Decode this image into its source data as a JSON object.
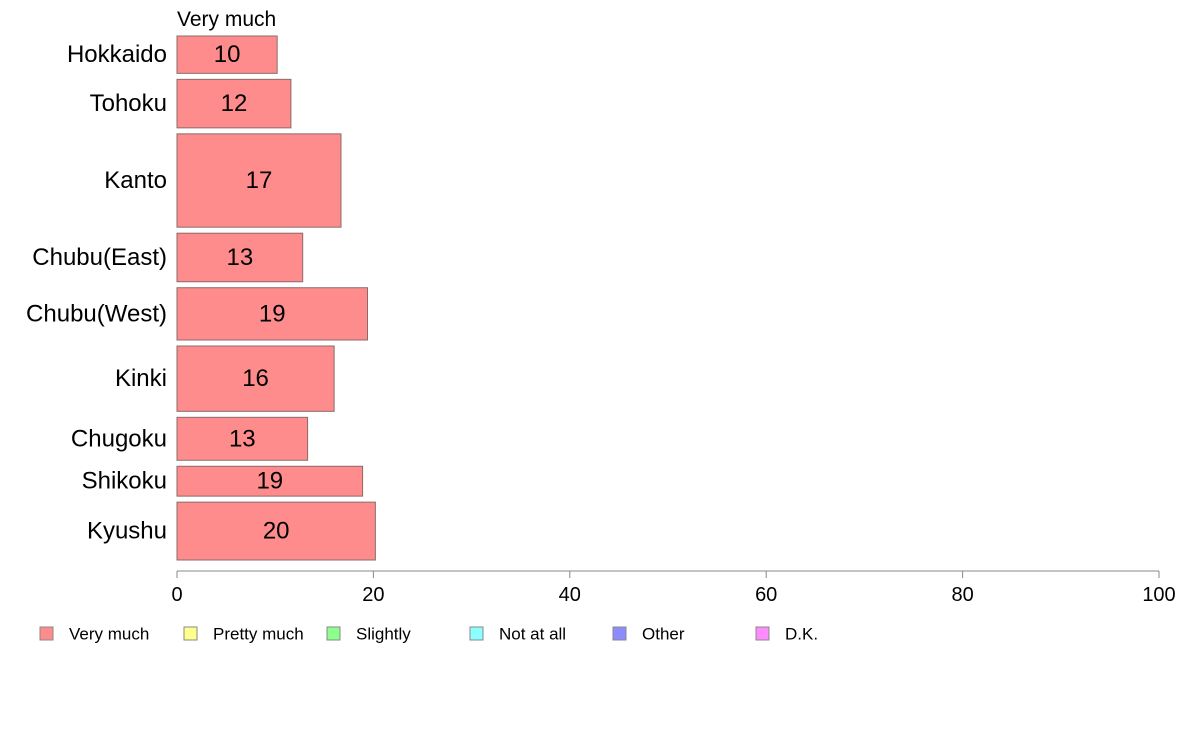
{
  "chart_data": {
    "type": "bar",
    "orientation": "horizontal",
    "stacked": true,
    "variable_width": true,
    "series_heading": "Very much",
    "categories": [
      "Hokkaido",
      "Tohoku",
      "Kanto",
      "Chubu(East)",
      "Chubu(West)",
      "Kinki",
      "Chugoku",
      "Shikoku",
      "Kyushu"
    ],
    "series": [
      {
        "name": "Very much",
        "color": "#ff8c8c",
        "values": [
          10.2,
          11.6,
          16.7,
          12.8,
          19.4,
          16.0,
          13.3,
          18.9,
          20.2
        ],
        "labels": [
          "10",
          "12",
          "17",
          "13",
          "19",
          "16",
          "13",
          "19",
          "20"
        ]
      }
    ],
    "category_weights": [
      1.0,
      1.3,
      2.5,
      1.3,
      1.4,
      1.75,
      1.15,
      0.8,
      1.55
    ],
    "xlim": [
      0,
      100
    ],
    "xticks": [
      "0",
      "20",
      "40",
      "60",
      "80",
      "100"
    ],
    "legend": {
      "position": "bottom",
      "items": [
        {
          "label": "Very much",
          "color": "#ff8c8c"
        },
        {
          "label": "Pretty much",
          "color": "#ffff8c"
        },
        {
          "label": "Slightly",
          "color": "#8cff8c"
        },
        {
          "label": "Not at all",
          "color": "#8cffff"
        },
        {
          "label": "Other",
          "color": "#8c8cff"
        },
        {
          "label": "D.K.",
          "color": "#ff8cff"
        }
      ]
    },
    "grid": false
  }
}
